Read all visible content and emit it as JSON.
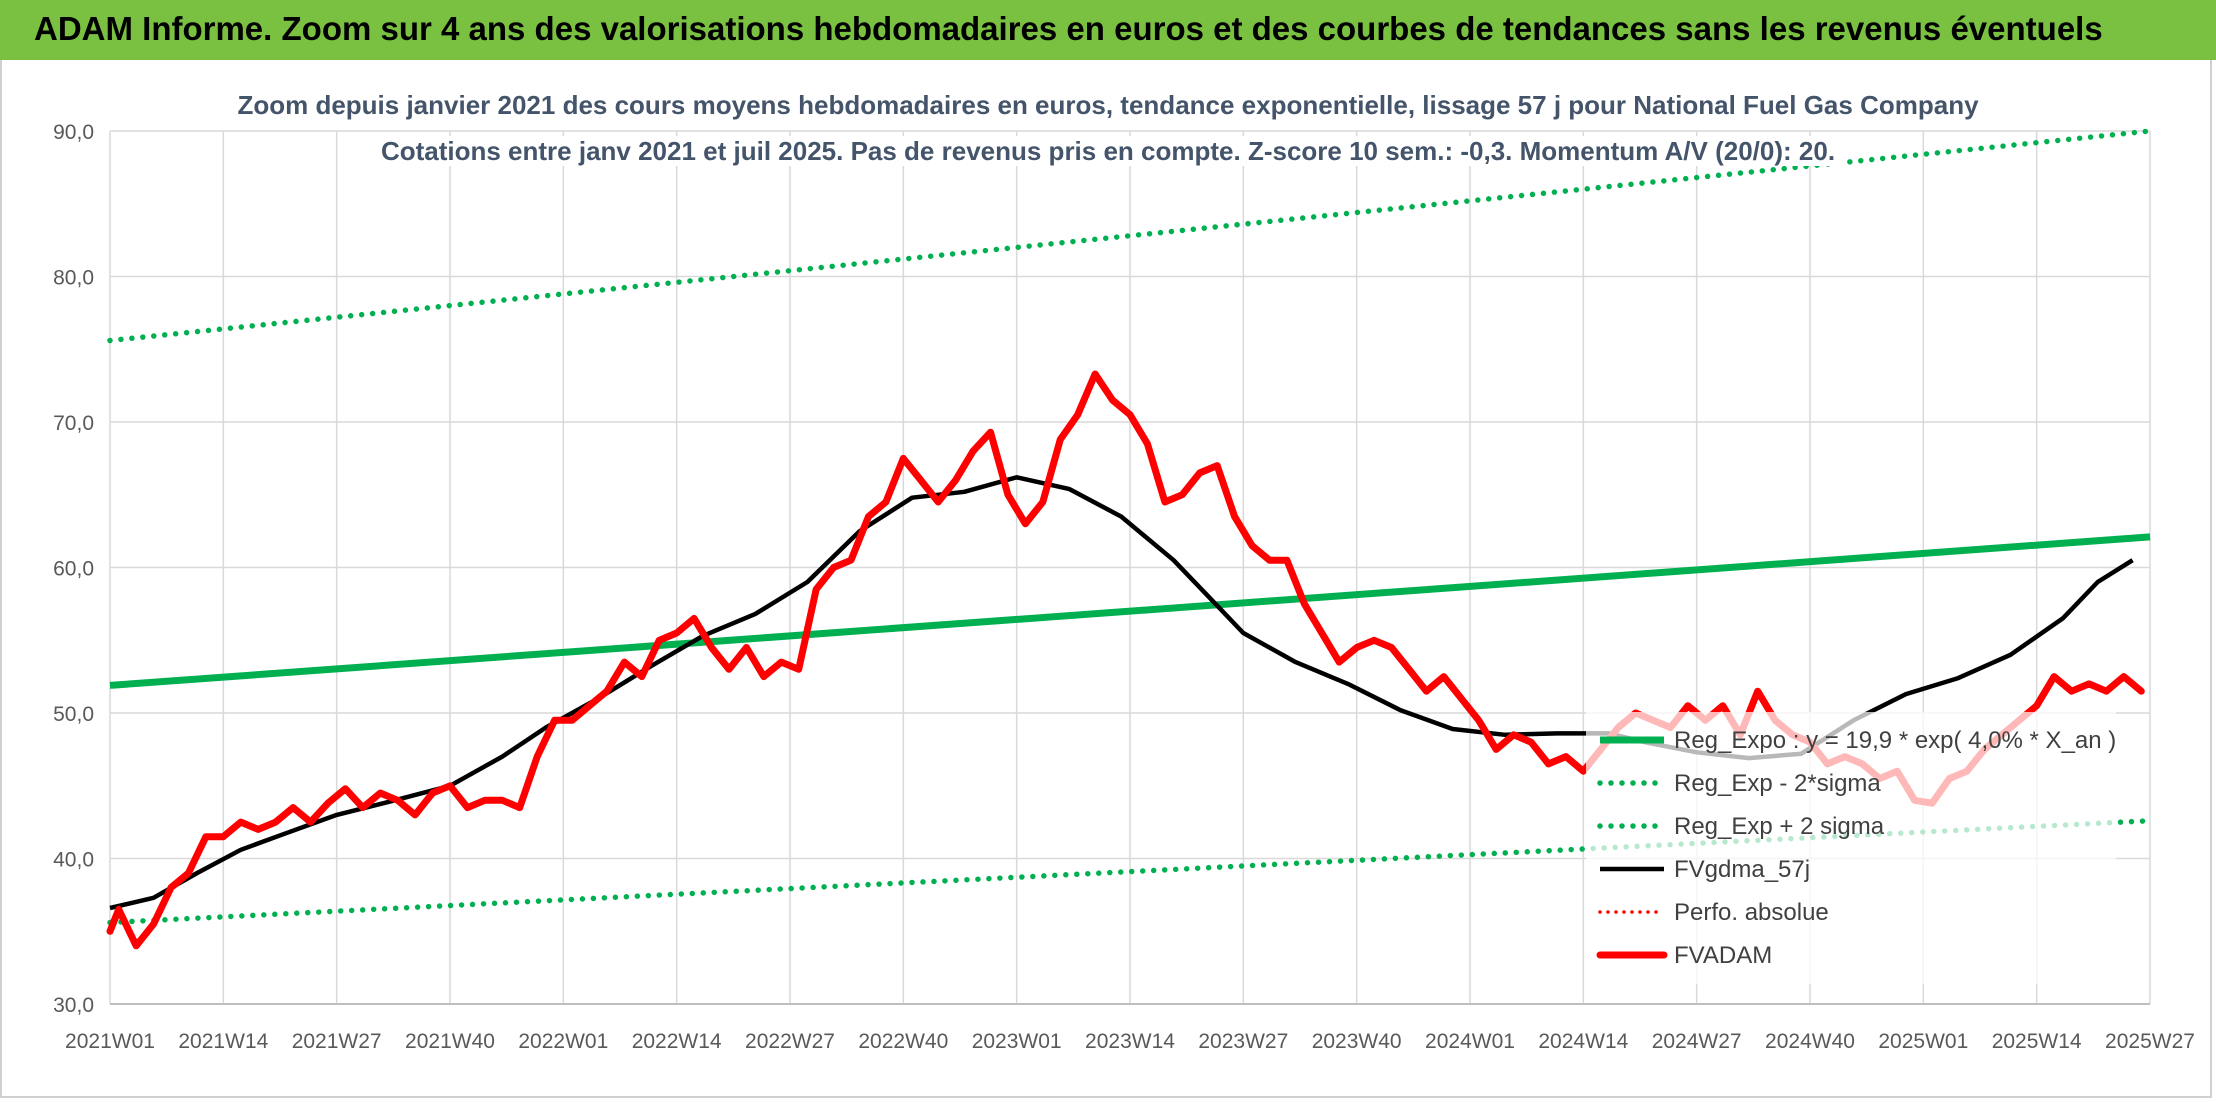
{
  "banner": {
    "title": "ADAM Informe. Zoom sur 4 ans des valorisations hebdomadaires en euros et des courbes de tendances sans les revenus éventuels",
    "color": "#7ac142"
  },
  "chart_data": {
    "type": "line",
    "title": "Zoom depuis janvier 2021 des cours moyens hebdomadaires en euros, tendance exponentielle, lissage 57 j pour National Fuel Gas Company",
    "subtitle": "Cotations entre janv 2021 et juil 2025. Pas de revenus pris en compte. Z-score 10 sem.: -0,3. Momentum A/V (20/0): 20.",
    "xlabel": "",
    "ylabel": "",
    "ylim": [
      30,
      90
    ],
    "yticks": [
      "30,0",
      "40,0",
      "50,0",
      "60,0",
      "70,0",
      "80,0",
      "90,0"
    ],
    "x_tick_labels": [
      "2021W01",
      "2021W14",
      "2021W27",
      "2021W40",
      "2022W01",
      "2022W14",
      "2022W27",
      "2022W40",
      "2023W01",
      "2023W14",
      "2023W27",
      "2023W40",
      "2024W01",
      "2024W14",
      "2024W27",
      "2024W40",
      "2025W01",
      "2025W14",
      "2025W27"
    ],
    "x_week_range": [
      0,
      234
    ],
    "grid": true,
    "legend_position": "bottom-right",
    "series": [
      {
        "name": "Reg_Expo : y = 19,9 * exp( 4,0% *  X_an )",
        "style": "solid",
        "color": "#00b050",
        "points": [
          [
            0,
            51.9
          ],
          [
            234,
            62.1
          ]
        ]
      },
      {
        "name": "Reg_Exp - 2*sigma",
        "style": "dotted",
        "color": "#00b050",
        "points": [
          [
            0,
            35.6
          ],
          [
            234,
            42.6
          ]
        ]
      },
      {
        "name": "Reg_Exp + 2 sigma",
        "style": "dotted",
        "color": "#00b050",
        "points": [
          [
            0,
            75.6
          ],
          [
            234,
            90.0
          ]
        ]
      },
      {
        "name": "FVgdma_57j",
        "style": "solid",
        "color": "#000000",
        "points": [
          [
            0,
            36.6
          ],
          [
            5,
            37.3
          ],
          [
            10,
            39.0
          ],
          [
            15,
            40.6
          ],
          [
            20,
            41.7
          ],
          [
            26,
            43.0
          ],
          [
            32,
            43.9
          ],
          [
            39,
            45.0
          ],
          [
            45,
            47.0
          ],
          [
            50,
            49.0
          ],
          [
            56,
            51.0
          ],
          [
            62,
            53.2
          ],
          [
            68,
            55.3
          ],
          [
            74,
            56.8
          ],
          [
            80,
            59.0
          ],
          [
            86,
            62.5
          ],
          [
            92,
            64.8
          ],
          [
            98,
            65.2
          ],
          [
            104,
            66.2
          ],
          [
            110,
            65.4
          ],
          [
            116,
            63.5
          ],
          [
            122,
            60.5
          ],
          [
            126,
            58.0
          ],
          [
            130,
            55.5
          ],
          [
            136,
            53.5
          ],
          [
            142,
            52.0
          ],
          [
            148,
            50.2
          ],
          [
            154,
            48.9
          ],
          [
            160,
            48.5
          ],
          [
            166,
            48.6
          ],
          [
            172,
            48.6
          ],
          [
            176,
            48.0
          ],
          [
            182,
            47.3
          ],
          [
            188,
            46.9
          ],
          [
            194,
            47.2
          ],
          [
            200,
            49.5
          ],
          [
            206,
            51.3
          ],
          [
            212,
            52.4
          ],
          [
            218,
            54.0
          ],
          [
            224,
            56.5
          ],
          [
            228,
            59.0
          ],
          [
            232,
            60.5
          ]
        ]
      },
      {
        "name": "Perfo. absolue",
        "style": "dotted",
        "color": "#ff0000",
        "points": []
      },
      {
        "name": "FVADAM",
        "style": "solid",
        "color": "#ff0000",
        "points": [
          [
            0,
            35.0
          ],
          [
            1,
            36.5
          ],
          [
            3,
            34.0
          ],
          [
            5,
            35.5
          ],
          [
            7,
            38.0
          ],
          [
            9,
            39.0
          ],
          [
            11,
            41.5
          ],
          [
            13,
            41.5
          ],
          [
            15,
            42.5
          ],
          [
            17,
            42.0
          ],
          [
            19,
            42.5
          ],
          [
            21,
            43.5
          ],
          [
            23,
            42.5
          ],
          [
            25,
            43.8
          ],
          [
            27,
            44.8
          ],
          [
            29,
            43.5
          ],
          [
            31,
            44.5
          ],
          [
            33,
            44.0
          ],
          [
            35,
            43.0
          ],
          [
            37,
            44.5
          ],
          [
            39,
            45.0
          ],
          [
            41,
            43.5
          ],
          [
            43,
            44.0
          ],
          [
            45,
            44.0
          ],
          [
            47,
            43.5
          ],
          [
            49,
            47.0
          ],
          [
            51,
            49.5
          ],
          [
            53,
            49.5
          ],
          [
            55,
            50.5
          ],
          [
            57,
            51.5
          ],
          [
            59,
            53.5
          ],
          [
            61,
            52.5
          ],
          [
            63,
            55.0
          ],
          [
            65,
            55.5
          ],
          [
            67,
            56.5
          ],
          [
            69,
            54.5
          ],
          [
            71,
            53.0
          ],
          [
            73,
            54.5
          ],
          [
            75,
            52.5
          ],
          [
            77,
            53.5
          ],
          [
            79,
            53.0
          ],
          [
            81,
            58.5
          ],
          [
            83,
            60.0
          ],
          [
            85,
            60.5
          ],
          [
            87,
            63.5
          ],
          [
            89,
            64.5
          ],
          [
            91,
            67.5
          ],
          [
            93,
            66.0
          ],
          [
            95,
            64.5
          ],
          [
            97,
            66.0
          ],
          [
            99,
            68.0
          ],
          [
            101,
            69.3
          ],
          [
            103,
            65.0
          ],
          [
            105,
            63.0
          ],
          [
            107,
            64.5
          ],
          [
            109,
            68.8
          ],
          [
            111,
            70.5
          ],
          [
            113,
            73.3
          ],
          [
            115,
            71.5
          ],
          [
            117,
            70.5
          ],
          [
            119,
            68.5
          ],
          [
            121,
            64.5
          ],
          [
            123,
            65.0
          ],
          [
            125,
            66.5
          ],
          [
            127,
            67.0
          ],
          [
            129,
            63.5
          ],
          [
            131,
            61.5
          ],
          [
            133,
            60.5
          ],
          [
            135,
            60.5
          ],
          [
            137,
            57.5
          ],
          [
            139,
            55.5
          ],
          [
            141,
            53.5
          ],
          [
            143,
            54.5
          ],
          [
            145,
            55.0
          ],
          [
            147,
            54.5
          ],
          [
            149,
            53.0
          ],
          [
            151,
            51.5
          ],
          [
            153,
            52.5
          ],
          [
            155,
            51.0
          ],
          [
            157,
            49.5
          ],
          [
            159,
            47.5
          ],
          [
            161,
            48.5
          ],
          [
            163,
            48.0
          ],
          [
            165,
            46.5
          ],
          [
            167,
            47.0
          ],
          [
            169,
            46.0
          ],
          [
            171,
            47.5
          ],
          [
            173,
            49.0
          ],
          [
            175,
            50.0
          ],
          [
            177,
            49.5
          ],
          [
            179,
            49.0
          ],
          [
            181,
            50.5
          ],
          [
            183,
            49.5
          ],
          [
            185,
            50.5
          ],
          [
            187,
            48.5
          ],
          [
            189,
            51.5
          ],
          [
            191,
            49.5
          ],
          [
            193,
            48.5
          ],
          [
            195,
            48.0
          ],
          [
            197,
            46.5
          ],
          [
            199,
            47.0
          ],
          [
            201,
            46.5
          ],
          [
            203,
            45.5
          ],
          [
            205,
            46.0
          ],
          [
            207,
            44.0
          ],
          [
            209,
            43.8
          ],
          [
            211,
            45.5
          ],
          [
            213,
            46.0
          ],
          [
            215,
            47.5
          ],
          [
            217,
            48.5
          ],
          [
            219,
            49.5
          ],
          [
            221,
            50.5
          ],
          [
            223,
            52.5
          ],
          [
            225,
            51.5
          ],
          [
            227,
            52.0
          ],
          [
            229,
            51.5
          ],
          [
            231,
            52.5
          ],
          [
            233,
            51.5
          ]
        ]
      }
    ]
  }
}
